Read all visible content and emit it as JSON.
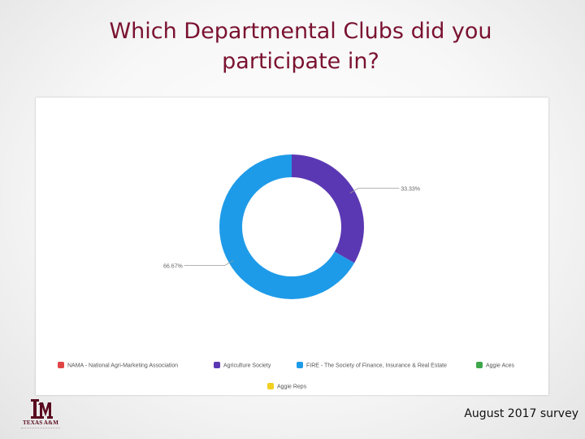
{
  "slide": {
    "title_line1": "Which Departmental Clubs did you",
    "title_line2": "participate in?",
    "footer": "August 2017 survey"
  },
  "logo": {
    "text": "TEXAS A&M",
    "icon": "texas-am-logo"
  },
  "colors": {
    "title": "#7a1230",
    "nama": "#e04545",
    "agriculture_society": "#5b38b3",
    "fire": "#1e9be8",
    "aggie_aces": "#3ea64a",
    "aggie_reps": "#f2d022"
  },
  "chart_data": {
    "type": "pie",
    "donut": true,
    "labels": [
      "NAMA - National Agri-Marketing Association",
      "Agriculture Society",
      "FIRE - The Society of Finance, Insurance & Real Estate",
      "Aggie Aces",
      "Aggie Reps"
    ],
    "values": [
      0,
      33.33,
      66.67,
      0,
      0
    ],
    "slice_labels": [
      "",
      "33.33%",
      "66.67%",
      "",
      ""
    ],
    "colors": [
      "#e04545",
      "#5b38b3",
      "#1e9be8",
      "#3ea64a",
      "#f2d022"
    ],
    "legend_position": "bottom"
  }
}
